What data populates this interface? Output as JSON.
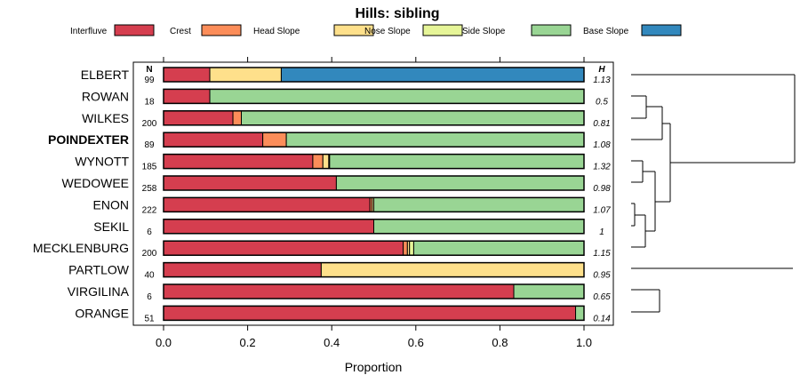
{
  "chart_data": {
    "type": "stacked-bar",
    "title": "Hills: sibling",
    "xlabel": "Proportion",
    "xlim": [
      0,
      1
    ],
    "xticks": [
      "0.0",
      "0.2",
      "0.4",
      "0.6",
      "0.8",
      "1.0"
    ],
    "n_header": "N",
    "h_header": "H",
    "legend": [
      {
        "name": "Interfluve",
        "color": "#d53e4f"
      },
      {
        "name": "Crest",
        "color": "#fc8d59"
      },
      {
        "name": "Head Slope",
        "color": "#fee08b"
      },
      {
        "name": "Nose Slope",
        "color": "#e6f598"
      },
      {
        "name": "Side Slope",
        "color": "#99d594"
      },
      {
        "name": "Base Slope",
        "color": "#3288bd"
      }
    ],
    "rows": [
      {
        "name": "ELBERT",
        "bold": false,
        "n": "99",
        "h": "1.13",
        "values": [
          0.11,
          0,
          0.17,
          0,
          0,
          0.72
        ]
      },
      {
        "name": "ROWAN",
        "bold": false,
        "n": "18",
        "h": "0.5",
        "values": [
          0.11,
          0,
          0,
          0,
          0.89,
          0
        ]
      },
      {
        "name": "WILKES",
        "bold": false,
        "n": "200",
        "h": "0.81",
        "values": [
          0.165,
          0.02,
          0,
          0,
          0.815,
          0
        ]
      },
      {
        "name": "POINDEXTER",
        "bold": true,
        "n": "89",
        "h": "1.08",
        "values": [
          0.236,
          0.056,
          0,
          0,
          0.708,
          0
        ]
      },
      {
        "name": "WYNOTT",
        "bold": false,
        "n": "185",
        "h": "1.32",
        "values": [
          0.355,
          0.024,
          0.014,
          0.002,
          0.605,
          0
        ]
      },
      {
        "name": "WEDOWEE",
        "bold": false,
        "n": "258",
        "h": "0.98",
        "values": [
          0.411,
          0,
          0,
          0,
          0.589,
          0
        ]
      },
      {
        "name": "ENON",
        "bold": false,
        "n": "222",
        "h": "1.07",
        "values": [
          0.491,
          0.005,
          0.004,
          0,
          0.5,
          0
        ]
      },
      {
        "name": "SEKIL",
        "bold": false,
        "n": "6",
        "h": "1",
        "values": [
          0.5,
          0,
          0,
          0,
          0.5,
          0
        ]
      },
      {
        "name": "MECKLENBURG",
        "bold": false,
        "n": "200",
        "h": "1.15",
        "values": [
          0.57,
          0.01,
          0.005,
          0.01,
          0.405,
          0
        ]
      },
      {
        "name": "PARTLOW",
        "bold": false,
        "n": "40",
        "h": "0.95",
        "values": [
          0.375,
          0,
          0.625,
          0,
          0,
          0
        ]
      },
      {
        "name": "VIRGILINA",
        "bold": false,
        "n": "6",
        "h": "0.65",
        "values": [
          0.833,
          0,
          0,
          0,
          0.167,
          0
        ]
      },
      {
        "name": "ORANGE",
        "bold": false,
        "n": "51",
        "h": "0.14",
        "values": [
          0.98,
          0,
          0,
          0,
          0.02,
          0
        ]
      }
    ]
  }
}
